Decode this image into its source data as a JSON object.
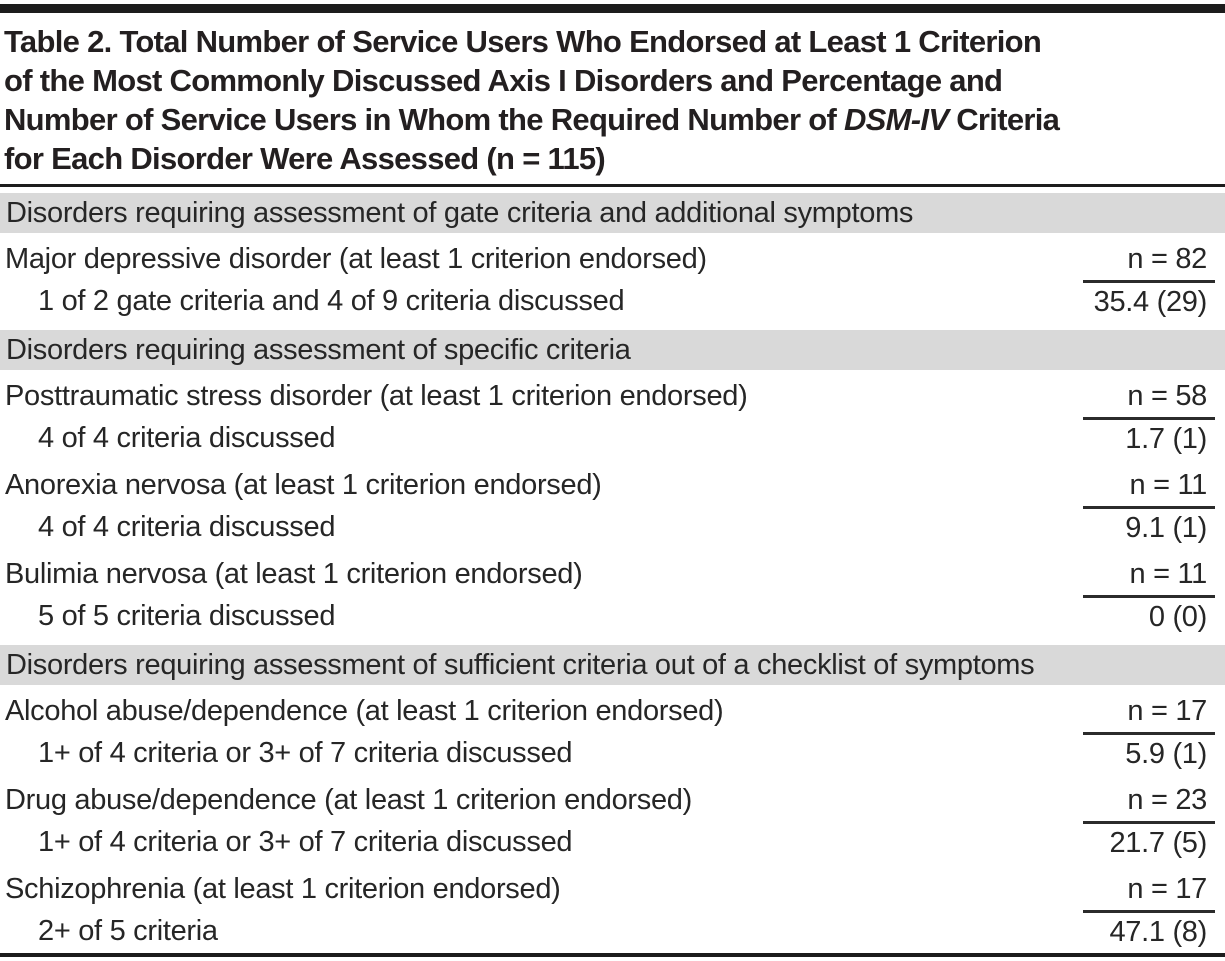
{
  "table": {
    "title": {
      "line1": "Table 2. Total Number of Service Users Who Endorsed at Least 1 Criterion",
      "line2": "of the Most Commonly Discussed Axis I Disorders and Percentage and",
      "line3_pre": "Number of Service Users in Whom the Required Number of ",
      "line3_italic": "DSM-IV",
      "line3_post": " Criteria",
      "line4": "for Each Disorder Were Assessed (n = 115)"
    },
    "sections": [
      {
        "header": "Disorders requiring assessment of gate criteria and additional symptoms",
        "rows": [
          {
            "disorder": "Major depressive disorder (at least 1 criterion endorsed)",
            "n": "n = 82",
            "criteria": "1 of 2 gate criteria and 4 of 9 criteria discussed",
            "percent_n": "35.4 (29)"
          }
        ]
      },
      {
        "header": "Disorders requiring assessment of specific criteria",
        "rows": [
          {
            "disorder": "Posttraumatic stress disorder (at least 1 criterion endorsed)",
            "n": "n = 58",
            "criteria": "4 of 4 criteria discussed",
            "percent_n": "1.7 (1)"
          },
          {
            "disorder": "Anorexia nervosa (at least 1 criterion endorsed)",
            "n": "n = 11",
            "criteria": "4 of 4 criteria discussed",
            "percent_n": "9.1 (1)"
          },
          {
            "disorder": "Bulimia nervosa (at least 1 criterion endorsed)",
            "n": "n = 11",
            "criteria": "5 of 5 criteria discussed",
            "percent_n": "0 (0)"
          }
        ]
      },
      {
        "header": "Disorders requiring assessment of sufficient criteria out of a checklist of symptoms",
        "rows": [
          {
            "disorder": "Alcohol abuse/dependence (at least 1 criterion endorsed)",
            "n": "n = 17",
            "criteria": "1+ of 4 criteria or 3+ of 7 criteria discussed",
            "percent_n": "5.9 (1)"
          },
          {
            "disorder": "Drug abuse/dependence (at least 1 criterion endorsed)",
            "n": "n = 23",
            "criteria": "1+ of 4 criteria or 3+ of 7 criteria discussed",
            "percent_n": "21.7 (5)"
          },
          {
            "disorder": "Schizophrenia (at least 1 criterion endorsed)",
            "n": "n = 17",
            "criteria": "2+ of 5 criteria",
            "percent_n": "47.1 (8)"
          }
        ]
      }
    ],
    "colors": {
      "band_gray": "#d9d9d9",
      "rule_black": "#1c1c1c",
      "text": "#262626"
    }
  }
}
